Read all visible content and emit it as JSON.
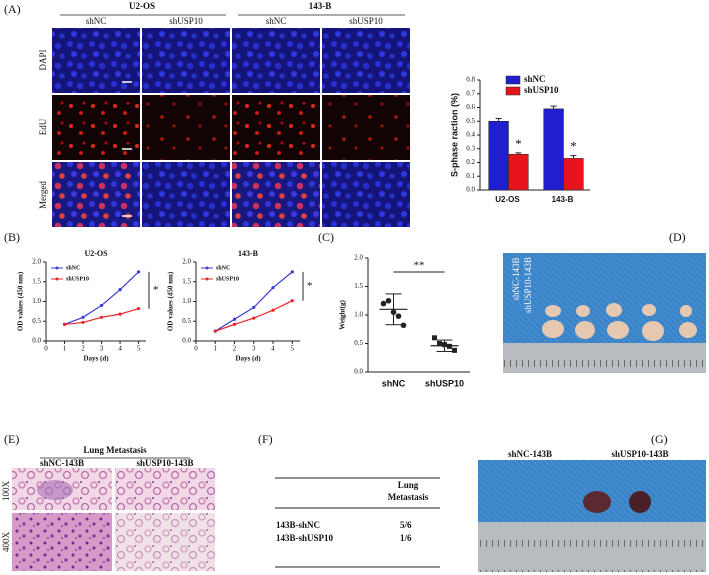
{
  "panel_labels": {
    "a": "(A)",
    "b": "(B)",
    "c": "(C)",
    "d": "(D)",
    "e": "(E)",
    "f": "(F)",
    "g": "(G)"
  },
  "panel_a": {
    "groups": [
      "U2-OS",
      "143-B"
    ],
    "columns": [
      "shNC",
      "shUSP10",
      "shNC",
      "shUSP10"
    ],
    "rows": [
      "DAPI",
      "EdU",
      "Merged"
    ]
  },
  "chart_data": [
    {
      "type": "bar",
      "ylabel": "S-phase raction (%)",
      "categories": [
        "U2-OS",
        "143-B"
      ],
      "series": [
        {
          "name": "shNC",
          "color": "#1f1fd0",
          "values": [
            0.5,
            0.59
          ],
          "errors": [
            0.02,
            0.02
          ]
        },
        {
          "name": "shUSP10",
          "color": "#e8141c",
          "values": [
            0.26,
            0.23
          ],
          "errors": [
            0.01,
            0.02
          ]
        }
      ],
      "annotations": [
        "*",
        "*"
      ],
      "ylim": [
        0,
        0.8
      ],
      "yticks": [
        {
          "value": 0,
          "label": "0.0"
        },
        0.1,
        0.2,
        0.3,
        0.4,
        0.5,
        0.6,
        0.7,
        0.8
      ],
      "legend": "upper right"
    },
    {
      "type": "line",
      "title": "U2-OS",
      "xlabel": "Days (d)",
      "ylabel": "OD values (450 nm)",
      "x": [
        1,
        2,
        3,
        4,
        5
      ],
      "series": [
        {
          "name": "shNC",
          "color": "#3b3bd6",
          "values": [
            0.42,
            0.6,
            0.9,
            1.3,
            1.75
          ]
        },
        {
          "name": "shUSP10",
          "color": "#e8242c",
          "values": [
            0.42,
            0.47,
            0.6,
            0.68,
            0.82
          ]
        }
      ],
      "annotations": [
        "*"
      ],
      "xlim": [
        0,
        5.4
      ],
      "xticks": [
        0,
        1,
        2,
        3,
        4,
        5
      ],
      "ylim": [
        0,
        2
      ],
      "yticks": [
        {
          "value": 0,
          "label": "0.0"
        },
        0.5,
        {
          "value": 1,
          "label": "1.0"
        },
        1.5,
        {
          "value": 2,
          "label": "2.0"
        }
      ],
      "legend": "upper left"
    },
    {
      "type": "line",
      "title": "143-B",
      "xlabel": "Days (d)",
      "ylabel": "OD values (450 nm)",
      "x": [
        1,
        2,
        3,
        4,
        5
      ],
      "series": [
        {
          "name": "shNC",
          "color": "#3b3bd6",
          "values": [
            0.25,
            0.55,
            0.85,
            1.35,
            1.75
          ]
        },
        {
          "name": "shUSP10",
          "color": "#e8242c",
          "values": [
            0.25,
            0.42,
            0.58,
            0.78,
            1.02
          ]
        }
      ],
      "annotations": [
        "*"
      ],
      "xlim": [
        0,
        5.4
      ],
      "xticks": [
        0,
        1,
        2,
        3,
        4,
        5
      ],
      "ylim": [
        0,
        2
      ],
      "yticks": [
        {
          "value": 0,
          "label": "0.0"
        },
        0.5,
        {
          "value": 1,
          "label": "1.0"
        },
        1.5,
        {
          "value": 2,
          "label": "2.0"
        }
      ],
      "legend": "upper left"
    },
    {
      "type": "scatter",
      "ylabel": "Weight(g)",
      "categories": [
        "shNC",
        "shUSP10"
      ],
      "points": [
        [
          1.2,
          1.25,
          1.05,
          0.98,
          0.82
        ],
        [
          0.6,
          0.5,
          0.48,
          0.45,
          0.38
        ]
      ],
      "means": [
        1.1,
        0.46
      ],
      "sd": [
        0.27,
        0.1
      ],
      "annotations": [
        "**"
      ],
      "ylim": [
        0,
        2
      ],
      "yticks": [
        {
          "value": 0,
          "label": "0.0"
        },
        0.5,
        {
          "value": 1,
          "label": "1.0"
        },
        1.5,
        {
          "value": 2,
          "label": "2.0"
        }
      ]
    }
  ],
  "panel_d": {
    "labels": [
      "shNC-143B",
      "shUSP10-143B"
    ]
  },
  "panel_e": {
    "title": "Lung Metastasis",
    "columns": [
      "shNC-143B",
      "shUSP10-143B"
    ],
    "rows": [
      "100X",
      "400X"
    ]
  },
  "table": {
    "header": [
      "Lung",
      "Metastasis"
    ],
    "rows": [
      [
        "143B-shNC",
        "5/6"
      ],
      [
        "143B-shUSP10",
        "1/6"
      ]
    ]
  },
  "panel_g": {
    "labels": [
      "shNC-143B",
      "shUSP10-143B"
    ]
  }
}
